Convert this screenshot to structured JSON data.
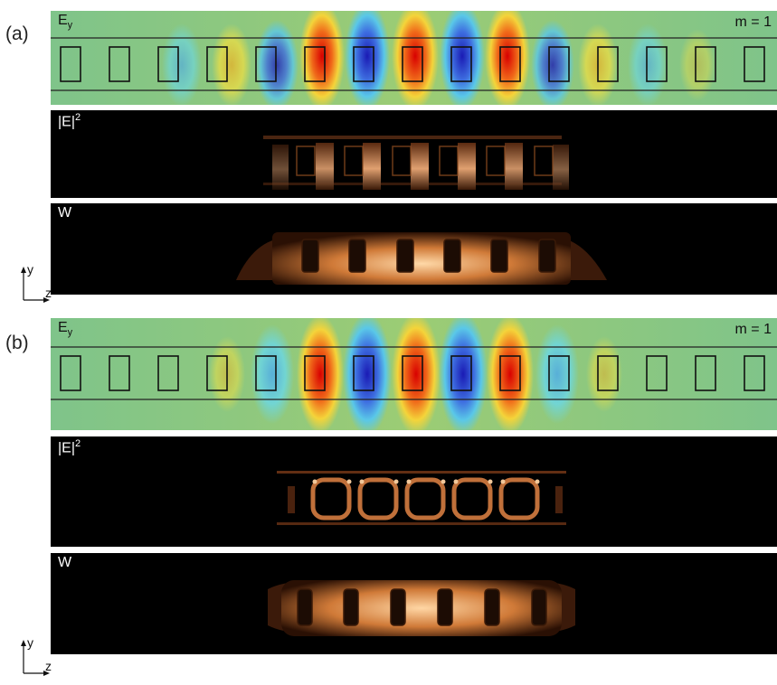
{
  "figures": [
    {
      "label": "(a)",
      "ey": {
        "symbol": "E",
        "sub": "y",
        "mode": "m = 1"
      },
      "intensity": {
        "symbol": "|E|",
        "sup": "2"
      },
      "energy": {
        "symbol": "W"
      },
      "axes": {
        "y": "y",
        "z": "z"
      }
    },
    {
      "label": "(b)",
      "ey": {
        "symbol": "E",
        "sub": "y",
        "mode": "m = 1"
      },
      "intensity": {
        "symbol": "|E|",
        "sup": "2"
      },
      "energy": {
        "symbol": "W"
      },
      "axes": {
        "y": "y",
        "z": "z"
      }
    }
  ],
  "colors": {
    "field_background": "#8cc784",
    "positive_lobe": "#e21c1c",
    "negative_lobe": "#2d3fc6",
    "dark_background": "#000000",
    "hot_glow": "#e89a5a"
  }
}
